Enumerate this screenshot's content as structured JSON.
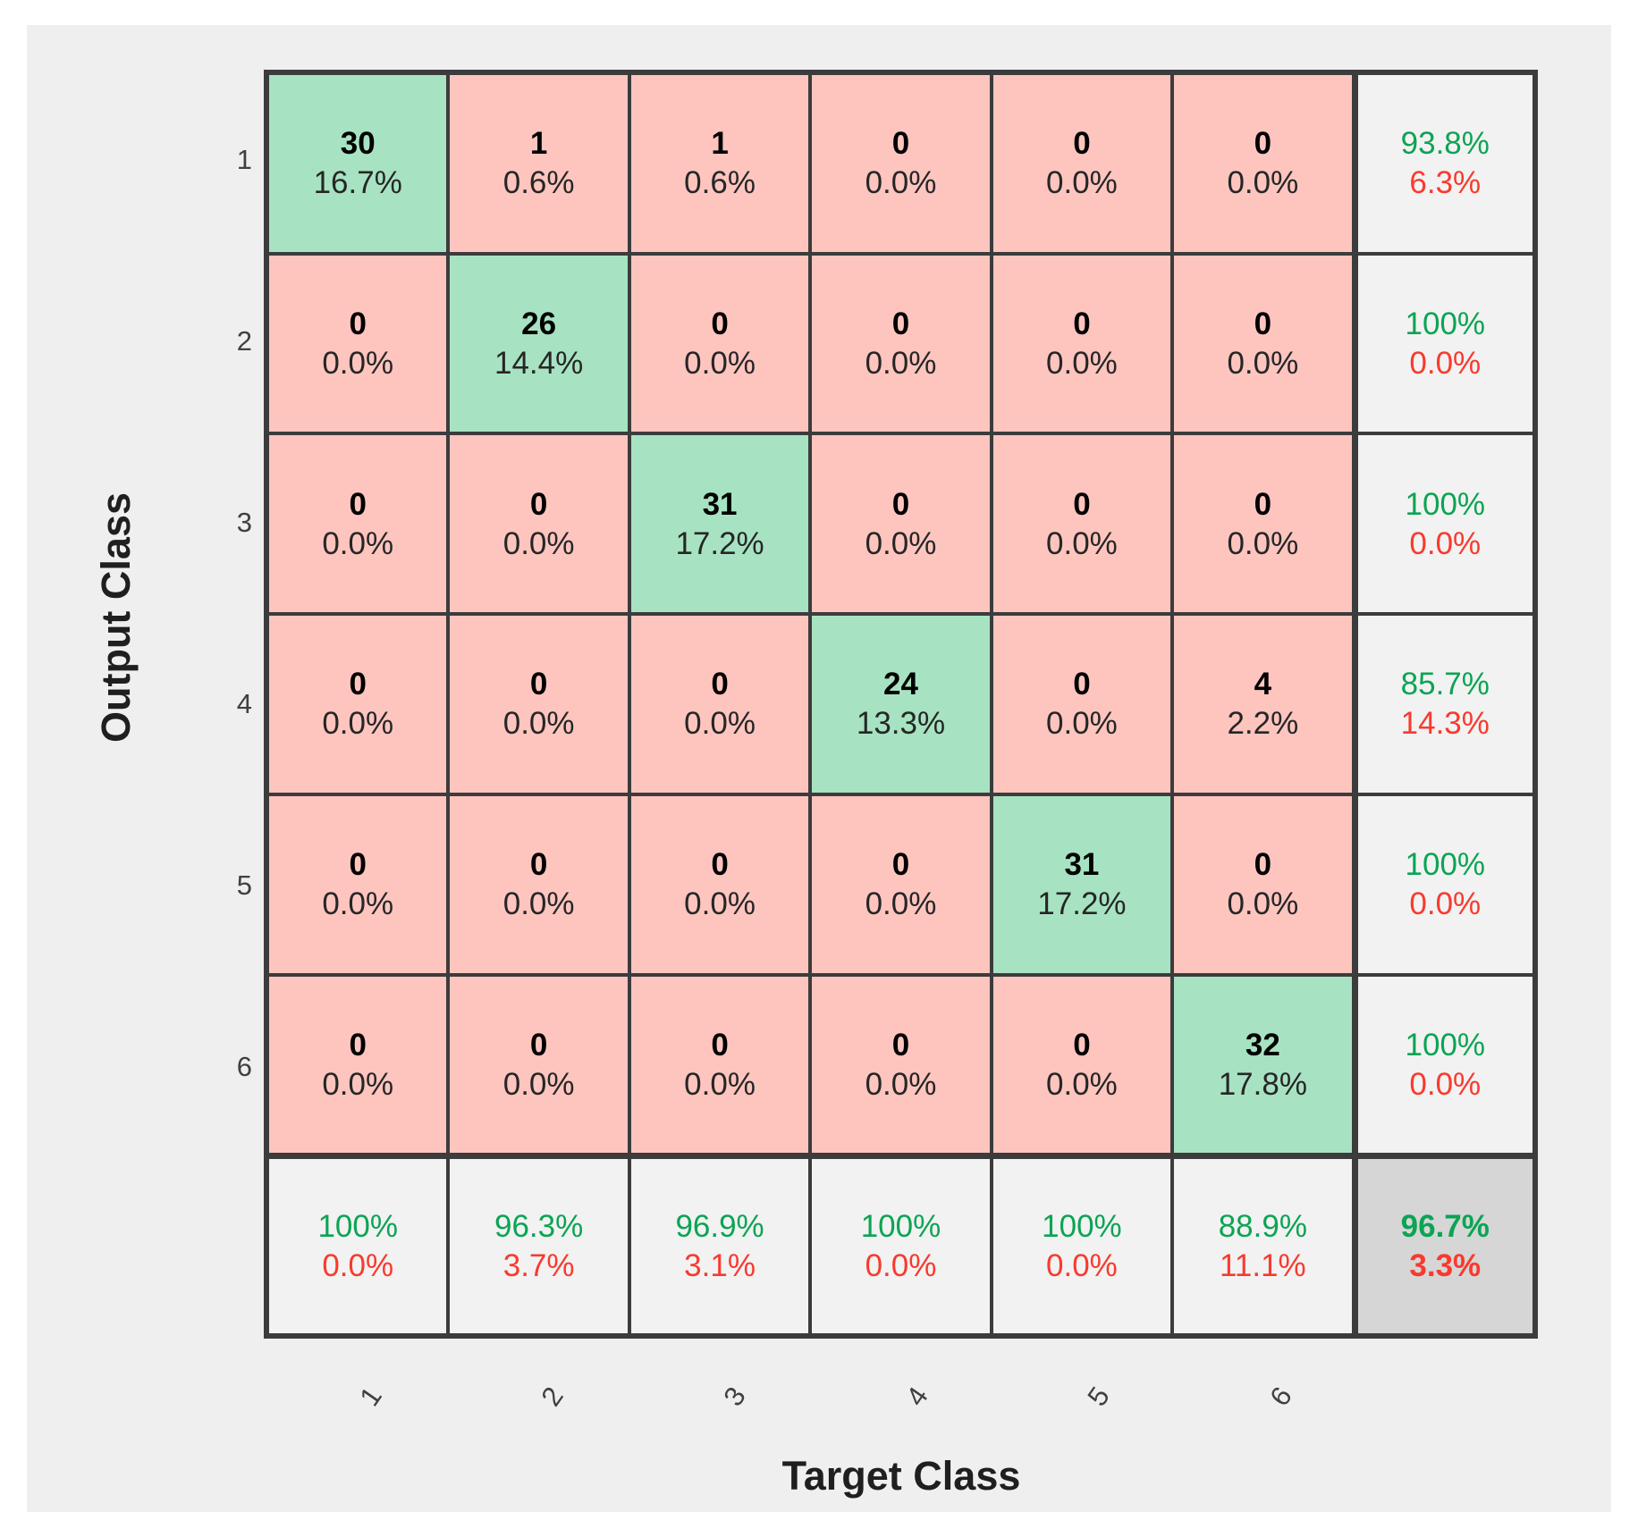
{
  "figure": {
    "background_color": "#efefef"
  },
  "chart_data": {
    "type": "heatmap",
    "subtype": "confusion-matrix",
    "title": "",
    "xlabel": "Target Class",
    "ylabel": "Output Class",
    "classes": [
      "1",
      "2",
      "3",
      "4",
      "5",
      "6"
    ],
    "counts": [
      [
        30,
        1,
        1,
        0,
        0,
        0
      ],
      [
        0,
        26,
        0,
        0,
        0,
        0
      ],
      [
        0,
        0,
        31,
        0,
        0,
        0
      ],
      [
        0,
        0,
        0,
        24,
        0,
        4
      ],
      [
        0,
        0,
        0,
        0,
        31,
        0
      ],
      [
        0,
        0,
        0,
        0,
        0,
        32
      ]
    ],
    "percents": [
      [
        "16.7%",
        "0.6%",
        "0.6%",
        "0.0%",
        "0.0%",
        "0.0%"
      ],
      [
        "0.0%",
        "14.4%",
        "0.0%",
        "0.0%",
        "0.0%",
        "0.0%"
      ],
      [
        "0.0%",
        "0.0%",
        "17.2%",
        "0.0%",
        "0.0%",
        "0.0%"
      ],
      [
        "0.0%",
        "0.0%",
        "0.0%",
        "13.3%",
        "0.0%",
        "2.2%"
      ],
      [
        "0.0%",
        "0.0%",
        "0.0%",
        "0.0%",
        "17.2%",
        "0.0%"
      ],
      [
        "0.0%",
        "0.0%",
        "0.0%",
        "0.0%",
        "0.0%",
        "17.8%"
      ]
    ],
    "row_summary_precision": [
      [
        "93.8%",
        "6.3%"
      ],
      [
        "100%",
        "0.0%"
      ],
      [
        "100%",
        "0.0%"
      ],
      [
        "85.7%",
        "14.3%"
      ],
      [
        "100%",
        "0.0%"
      ],
      [
        "100%",
        "0.0%"
      ]
    ],
    "col_summary_recall": [
      [
        "100%",
        "0.0%"
      ],
      [
        "96.3%",
        "3.7%"
      ],
      [
        "96.9%",
        "3.1%"
      ],
      [
        "100%",
        "0.0%"
      ],
      [
        "100%",
        "0.0%"
      ],
      [
        "88.9%",
        "11.1%"
      ]
    ],
    "overall_accuracy": [
      "96.7%",
      "3.3%"
    ],
    "colors": {
      "diagonal_cell": "#a7e3c2",
      "off_diagonal_cell": "#fec5bf",
      "summary_cell": "#f2f2f2",
      "overall_cell": "#d6d6d6",
      "good_text": "#0ca454",
      "bad_text": "#f93a2e",
      "grid_line": "#3c3c3c"
    },
    "grid": "on",
    "legend_position": "none"
  }
}
